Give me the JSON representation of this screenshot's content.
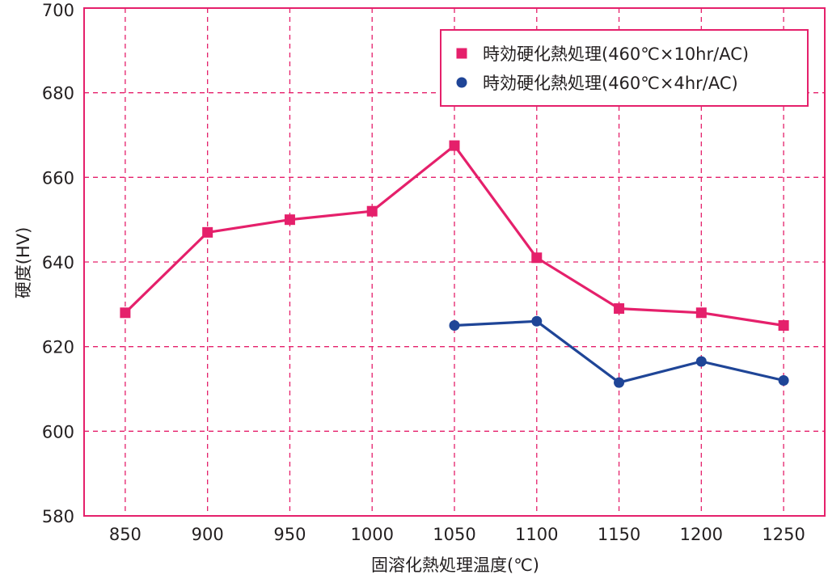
{
  "chart_data": {
    "type": "line",
    "xlabel": "固溶化熱処理温度(℃)",
    "ylabel": "硬度(HV)",
    "x_ticks": [
      "850",
      "900",
      "950",
      "1000",
      "1050",
      "1100",
      "1150",
      "1200",
      "1250"
    ],
    "y_ticks": [
      "580",
      "600",
      "620",
      "640",
      "660",
      "680",
      "700"
    ],
    "xlim": [
      825,
      1275
    ],
    "ylim": [
      580,
      700
    ],
    "grid": true,
    "legend_position": "top-right",
    "series": [
      {
        "name": "時効硬化熱処理(460℃×10hr/AC)",
        "marker": "square",
        "color": "#e5206b",
        "x": [
          850,
          900,
          950,
          1000,
          1050,
          1100,
          1150,
          1200,
          1250
        ],
        "y": [
          628,
          647,
          650,
          652,
          667.5,
          641,
          629,
          628,
          625
        ]
      },
      {
        "name": "時効硬化熱処理(460℃×4hr/AC)",
        "marker": "circle",
        "color": "#1f4597",
        "x": [
          1050,
          1100,
          1150,
          1200,
          1250
        ],
        "y": [
          625,
          626,
          611.5,
          616.5,
          612
        ]
      }
    ]
  },
  "colors": {
    "frame": "#e5206b",
    "grid": "#e5206b",
    "text": "#231f20"
  }
}
